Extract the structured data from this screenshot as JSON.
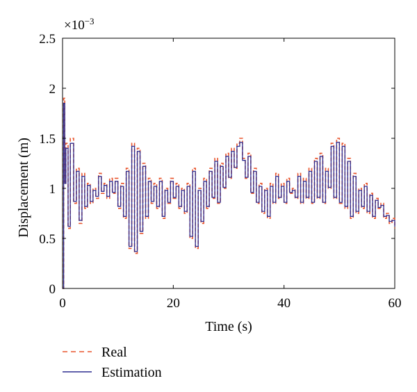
{
  "chart_data": {
    "type": "line",
    "xlabel": "Time (s)",
    "ylabel": "Displacement (m)",
    "y_exponent_label": "×10",
    "y_exponent_power": "−3",
    "xlim": [
      0,
      60
    ],
    "ylim": [
      0,
      2.5
    ],
    "x_ticks": [
      0,
      20,
      40,
      60
    ],
    "x_tick_labels": [
      "0",
      "20",
      "40",
      "60"
    ],
    "y_ticks": [
      0,
      0.5,
      1,
      1.5,
      2,
      2.5
    ],
    "y_tick_labels": [
      "0",
      "0.5",
      "1",
      "1.5",
      "2",
      "2.5"
    ],
    "grid": false,
    "legend_position": "below-left",
    "series": [
      {
        "name": "Real",
        "color": "#e8542c",
        "style": "dashed",
        "x": [
          0,
          0.2,
          0.4,
          0.6,
          1,
          1.4,
          2,
          2.5,
          3,
          3.5,
          4,
          4.5,
          5,
          5.5,
          6,
          6.5,
          7,
          7.5,
          8,
          8.5,
          9,
          9.5,
          10,
          10.5,
          11,
          11.5,
          12,
          12.5,
          13,
          13.5,
          14,
          14.5,
          15,
          15.5,
          16,
          16.5,
          17,
          17.5,
          18,
          18.5,
          19,
          19.5,
          20,
          20.5,
          21,
          21.5,
          22,
          22.5,
          23,
          23.5,
          24,
          24.5,
          25,
          25.5,
          26,
          26.5,
          27,
          27.5,
          28,
          28.5,
          29,
          29.5,
          30,
          30.5,
          31,
          31.5,
          32,
          32.5,
          33,
          33.5,
          34,
          34.5,
          35,
          35.5,
          36,
          36.5,
          37,
          37.5,
          38,
          38.5,
          39,
          39.5,
          40,
          40.5,
          41,
          41.5,
          42,
          42.5,
          43,
          43.5,
          44,
          44.5,
          45,
          45.5,
          46,
          46.5,
          47,
          47.5,
          48,
          48.5,
          49,
          49.5,
          50,
          50.5,
          51,
          51.5,
          52,
          52.5,
          53,
          53.5,
          54,
          54.5,
          55,
          55.5,
          56,
          56.5,
          57,
          57.5,
          58,
          58.5,
          59,
          59.5,
          60
        ],
        "y": [
          0,
          1.9,
          1.05,
          1.45,
          0.6,
          1.5,
          0.85,
          1.2,
          0.65,
          1.15,
          0.8,
          1.05,
          0.85,
          1.0,
          0.9,
          1.15,
          0.95,
          1.05,
          0.9,
          1.1,
          0.95,
          1.1,
          0.8,
          1.05,
          0.7,
          1.2,
          0.4,
          1.45,
          0.35,
          1.4,
          0.55,
          1.25,
          0.7,
          1.1,
          0.85,
          1.05,
          0.8,
          1.1,
          0.7,
          1.0,
          0.85,
          1.1,
          0.9,
          1.05,
          0.8,
          1.0,
          0.75,
          1.05,
          0.5,
          1.2,
          0.4,
          1.0,
          0.65,
          1.1,
          0.8,
          1.2,
          0.9,
          1.3,
          0.85,
          1.25,
          1.0,
          1.35,
          1.1,
          1.4,
          1.2,
          1.45,
          1.5,
          1.3,
          1.1,
          1.35,
          0.95,
          1.2,
          0.85,
          1.05,
          0.75,
          1.0,
          0.7,
          1.05,
          0.85,
          1.15,
          0.9,
          1.05,
          0.85,
          1.1,
          0.95,
          1.0,
          0.9,
          1.15,
          0.85,
          1.1,
          0.9,
          1.2,
          0.85,
          1.3,
          0.9,
          1.35,
          0.85,
          1.2,
          1.0,
          1.45,
          0.9,
          1.5,
          0.85,
          1.45,
          0.8,
          1.3,
          0.7,
          1.15,
          0.75,
          1.0,
          0.8,
          1.05,
          0.75,
          0.95,
          0.7,
          0.9,
          0.8,
          0.85,
          0.7,
          0.75,
          0.65,
          0.7,
          0.6
        ]
      },
      {
        "name": "Estimation",
        "color": "#2b2b8f",
        "style": "solid",
        "x": [
          0,
          0.2,
          0.4,
          0.6,
          1,
          1.4,
          2,
          2.5,
          3,
          3.5,
          4,
          4.5,
          5,
          5.5,
          6,
          6.5,
          7,
          7.5,
          8,
          8.5,
          9,
          9.5,
          10,
          10.5,
          11,
          11.5,
          12,
          12.5,
          13,
          13.5,
          14,
          14.5,
          15,
          15.5,
          16,
          16.5,
          17,
          17.5,
          18,
          18.5,
          19,
          19.5,
          20,
          20.5,
          21,
          21.5,
          22,
          22.5,
          23,
          23.5,
          24,
          24.5,
          25,
          25.5,
          26,
          26.5,
          27,
          27.5,
          28,
          28.5,
          29,
          29.5,
          30,
          30.5,
          31,
          31.5,
          32,
          32.5,
          33,
          33.5,
          34,
          34.5,
          35,
          35.5,
          36,
          36.5,
          37,
          37.5,
          38,
          38.5,
          39,
          39.5,
          40,
          40.5,
          41,
          41.5,
          42,
          42.5,
          43,
          43.5,
          44,
          44.5,
          45,
          45.5,
          46,
          46.5,
          47,
          47.5,
          48,
          48.5,
          49,
          49.5,
          50,
          50.5,
          51,
          51.5,
          52,
          52.5,
          53,
          53.5,
          54,
          54.5,
          55,
          55.5,
          56,
          56.5,
          57,
          57.5,
          58,
          58.5,
          59,
          59.5,
          60
        ],
        "y": [
          0,
          1.85,
          1.05,
          1.4,
          0.62,
          1.45,
          0.87,
          1.17,
          0.68,
          1.12,
          0.82,
          1.03,
          0.87,
          0.98,
          0.92,
          1.12,
          0.97,
          1.03,
          0.92,
          1.07,
          0.96,
          1.07,
          0.82,
          1.02,
          0.72,
          1.17,
          0.42,
          1.42,
          0.37,
          1.37,
          0.57,
          1.22,
          0.72,
          1.07,
          0.87,
          1.02,
          0.82,
          1.07,
          0.72,
          0.98,
          0.86,
          1.07,
          0.91,
          1.02,
          0.82,
          0.98,
          0.77,
          1.02,
          0.52,
          1.17,
          0.42,
          0.98,
          0.67,
          1.07,
          0.82,
          1.17,
          0.91,
          1.27,
          0.86,
          1.22,
          1.01,
          1.32,
          1.11,
          1.37,
          1.21,
          1.42,
          1.46,
          1.28,
          1.11,
          1.32,
          0.96,
          1.17,
          0.86,
          1.02,
          0.77,
          0.98,
          0.72,
          1.02,
          0.86,
          1.12,
          0.91,
          1.02,
          0.86,
          1.07,
          0.96,
          0.98,
          0.91,
          1.12,
          0.86,
          1.07,
          0.91,
          1.17,
          0.86,
          1.27,
          0.91,
          1.32,
          0.86,
          1.17,
          1.01,
          1.42,
          0.91,
          1.46,
          0.86,
          1.42,
          0.82,
          1.27,
          0.72,
          1.12,
          0.77,
          0.98,
          0.82,
          1.02,
          0.77,
          0.93,
          0.72,
          0.88,
          0.81,
          0.83,
          0.72,
          0.73,
          0.67,
          0.68,
          0.62
        ]
      }
    ]
  }
}
